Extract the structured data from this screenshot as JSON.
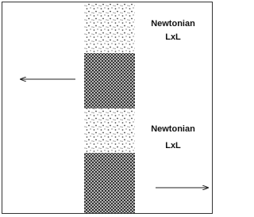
{
  "labels": [
    {
      "line1": "Newtonian",
      "line2": "LxL"
    },
    {
      "line1": "Newtonian",
      "line2": "LxL"
    }
  ]
}
